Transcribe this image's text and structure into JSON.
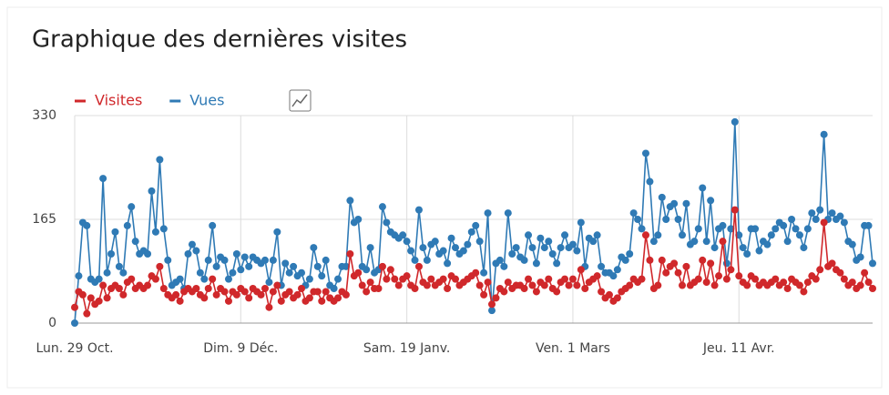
{
  "chart_data": {
    "type": "line",
    "title": "Graphique des dernières visites",
    "categories": [
      "Lun. 29 Oct.",
      null,
      null,
      null,
      null,
      null,
      null,
      null,
      null,
      null,
      null,
      null,
      null,
      null,
      null,
      null,
      null,
      null,
      null,
      null,
      null,
      null,
      null,
      null,
      null,
      null,
      null,
      null,
      null,
      null,
      null,
      null,
      null,
      null,
      null,
      null,
      null,
      null,
      null,
      null,
      null,
      "Dim. 9 Déc.",
      null,
      null,
      null,
      null,
      null,
      null,
      null,
      null,
      null,
      null,
      null,
      null,
      null,
      null,
      null,
      null,
      null,
      null,
      null,
      null,
      null,
      null,
      null,
      null,
      null,
      null,
      null,
      null,
      null,
      null,
      null,
      null,
      null,
      null,
      null,
      null,
      null,
      null,
      null,
      null,
      "Sam. 19 Janv.",
      null,
      null,
      null,
      null,
      null,
      null,
      null,
      null,
      null,
      null,
      null,
      null,
      null,
      null,
      null,
      null,
      null,
      null,
      null,
      null,
      null,
      null,
      null,
      null,
      null,
      null,
      null,
      null,
      null,
      null,
      null,
      null,
      null,
      null,
      null,
      null,
      null,
      null,
      null,
      null,
      "Ven. 1 Mars",
      null,
      null,
      null,
      null,
      null,
      null,
      null,
      null,
      null,
      null,
      null,
      null,
      null,
      null,
      null,
      null,
      null,
      null,
      null,
      null,
      null,
      null,
      null,
      null,
      null,
      null,
      null,
      null,
      null,
      null,
      null,
      null,
      null,
      null,
      null,
      null,
      null,
      null,
      null,
      null,
      "Jeu. 11 Avr.",
      null,
      null,
      null,
      null,
      null,
      null,
      null,
      null,
      null,
      null,
      null,
      null,
      null,
      null,
      null,
      null,
      null,
      null,
      null,
      null,
      null,
      null,
      null,
      null,
      null,
      null,
      null,
      null,
      null,
      null,
      null,
      null,
      null
    ],
    "series": [
      {
        "name": "Visites",
        "color": "#d0282b",
        "values": [
          25,
          50,
          45,
          15,
          40,
          30,
          35,
          60,
          40,
          55,
          60,
          55,
          45,
          65,
          70,
          55,
          60,
          55,
          60,
          75,
          70,
          90,
          55,
          45,
          40,
          45,
          35,
          50,
          55,
          50,
          55,
          45,
          40,
          55,
          70,
          45,
          55,
          50,
          35,
          50,
          45,
          55,
          50,
          40,
          55,
          50,
          45,
          55,
          25,
          50,
          60,
          35,
          45,
          50,
          40,
          45,
          55,
          35,
          40,
          50,
          50,
          35,
          50,
          40,
          35,
          40,
          50,
          45,
          110,
          75,
          80,
          60,
          50,
          65,
          55,
          55,
          90,
          70,
          85,
          70,
          60,
          70,
          75,
          60,
          55,
          90,
          65,
          60,
          70,
          60,
          65,
          70,
          55,
          75,
          70,
          60,
          65,
          70,
          75,
          80,
          60,
          45,
          65,
          30,
          40,
          55,
          50,
          65,
          55,
          60,
          60,
          55,
          70,
          60,
          50,
          65,
          60,
          70,
          55,
          50,
          65,
          70,
          60,
          70,
          60,
          85,
          55,
          65,
          70,
          75,
          50,
          40,
          45,
          35,
          40,
          50,
          55,
          60,
          70,
          65,
          70,
          140,
          100,
          55,
          60,
          100,
          80,
          90,
          95,
          80,
          60,
          90,
          60,
          65,
          70,
          100,
          65,
          95,
          60,
          75,
          130,
          70,
          85,
          180,
          75,
          65,
          60,
          75,
          70,
          60,
          65,
          60,
          65,
          70,
          60,
          65,
          55,
          70,
          65,
          60,
          50,
          65,
          75,
          70,
          85,
          160,
          90,
          95,
          85,
          80,
          70,
          60,
          65,
          55,
          60,
          80,
          65,
          55
        ]
      },
      {
        "name": "Vues",
        "color": "#2f7ab5",
        "values": [
          0,
          75,
          160,
          155,
          70,
          65,
          70,
          230,
          80,
          110,
          145,
          90,
          80,
          155,
          185,
          130,
          110,
          115,
          110,
          210,
          145,
          260,
          150,
          100,
          60,
          65,
          70,
          55,
          110,
          125,
          115,
          80,
          70,
          100,
          155,
          90,
          105,
          100,
          70,
          80,
          110,
          85,
          105,
          90,
          105,
          100,
          95,
          100,
          65,
          100,
          145,
          60,
          95,
          80,
          90,
          75,
          80,
          60,
          70,
          120,
          90,
          75,
          100,
          60,
          55,
          70,
          90,
          90,
          195,
          160,
          165,
          90,
          85,
          120,
          80,
          85,
          185,
          160,
          145,
          140,
          135,
          140,
          130,
          115,
          100,
          180,
          120,
          100,
          125,
          130,
          110,
          115,
          95,
          135,
          120,
          110,
          115,
          125,
          145,
          155,
          130,
          80,
          175,
          20,
          95,
          100,
          90,
          175,
          110,
          120,
          105,
          100,
          140,
          120,
          95,
          135,
          120,
          130,
          110,
          95,
          120,
          140,
          120,
          125,
          115,
          160,
          90,
          135,
          130,
          140,
          90,
          80,
          80,
          75,
          85,
          105,
          100,
          110,
          175,
          165,
          150,
          270,
          225,
          130,
          140,
          200,
          165,
          185,
          190,
          165,
          140,
          190,
          125,
          130,
          150,
          215,
          130,
          195,
          120,
          150,
          155,
          95,
          150,
          320,
          140,
          120,
          110,
          150,
          150,
          115,
          130,
          125,
          140,
          150,
          160,
          155,
          130,
          165,
          150,
          140,
          120,
          150,
          175,
          165,
          180,
          300,
          165,
          175,
          165,
          170,
          160,
          130,
          125,
          100,
          105,
          155,
          155,
          95
        ]
      }
    ],
    "ylim": [
      0,
      330
    ],
    "yticks": [
      0,
      165,
      330
    ],
    "grid": true
  }
}
